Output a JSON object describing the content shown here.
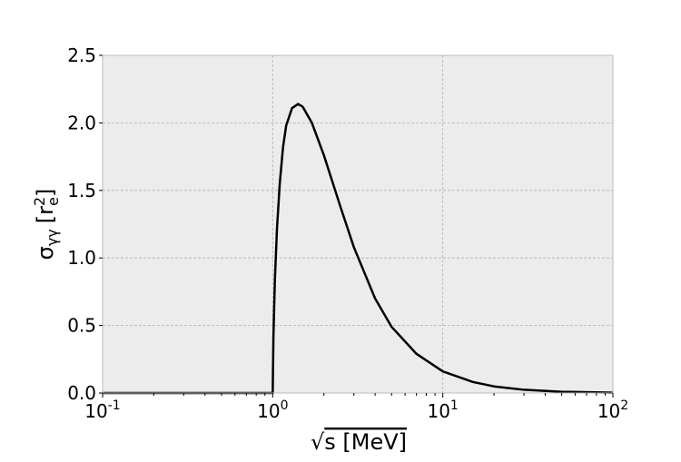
{
  "chart_data": {
    "type": "line",
    "title": "",
    "xlabel": {
      "root": "√",
      "text": "s [MeV]"
    },
    "ylabel": {
      "main": "σ",
      "sub": "γγ",
      "unit_open": "[r",
      "unit_sup": "2",
      "unit_sub": "e",
      "unit_close": "]"
    },
    "xscale": "log",
    "xlim": [
      0.1,
      100
    ],
    "ylim": [
      0,
      2.5
    ],
    "grid": true,
    "legend": "none",
    "plot_background": "#ececec",
    "line_color": "#000000",
    "x_ticks": [
      {
        "base": "10",
        "exp": "-1",
        "value": 0.1
      },
      {
        "base": "10",
        "exp": "0",
        "value": 1
      },
      {
        "base": "10",
        "exp": "1",
        "value": 10
      },
      {
        "base": "10",
        "exp": "2",
        "value": 100
      }
    ],
    "y_ticks": [
      {
        "label": "0.0",
        "value": 0
      },
      {
        "label": "0.5",
        "value": 0.5
      },
      {
        "label": "1.0",
        "value": 1.0
      },
      {
        "label": "1.5",
        "value": 1.5
      },
      {
        "label": "2.0",
        "value": 2.0
      },
      {
        "label": "2.5",
        "value": 2.5
      }
    ],
    "series": [
      {
        "x": [
          0.1,
          0.2,
          0.5,
          0.9,
          1.0,
          1.01,
          1.03,
          1.06,
          1.1,
          1.15,
          1.2,
          1.3,
          1.41,
          1.5,
          1.7,
          2.0,
          2.5,
          3.0,
          4.0,
          5.0,
          7.0,
          10.0,
          15.0,
          20.0,
          30.0,
          50.0,
          100.0
        ],
        "y": [
          0,
          0,
          0,
          0,
          0,
          0.42,
          0.84,
          1.22,
          1.55,
          1.82,
          1.98,
          2.11,
          2.14,
          2.12,
          2.0,
          1.76,
          1.38,
          1.08,
          0.7,
          0.49,
          0.29,
          0.16,
          0.082,
          0.049,
          0.024,
          0.0095,
          0.0026
        ]
      }
    ]
  }
}
